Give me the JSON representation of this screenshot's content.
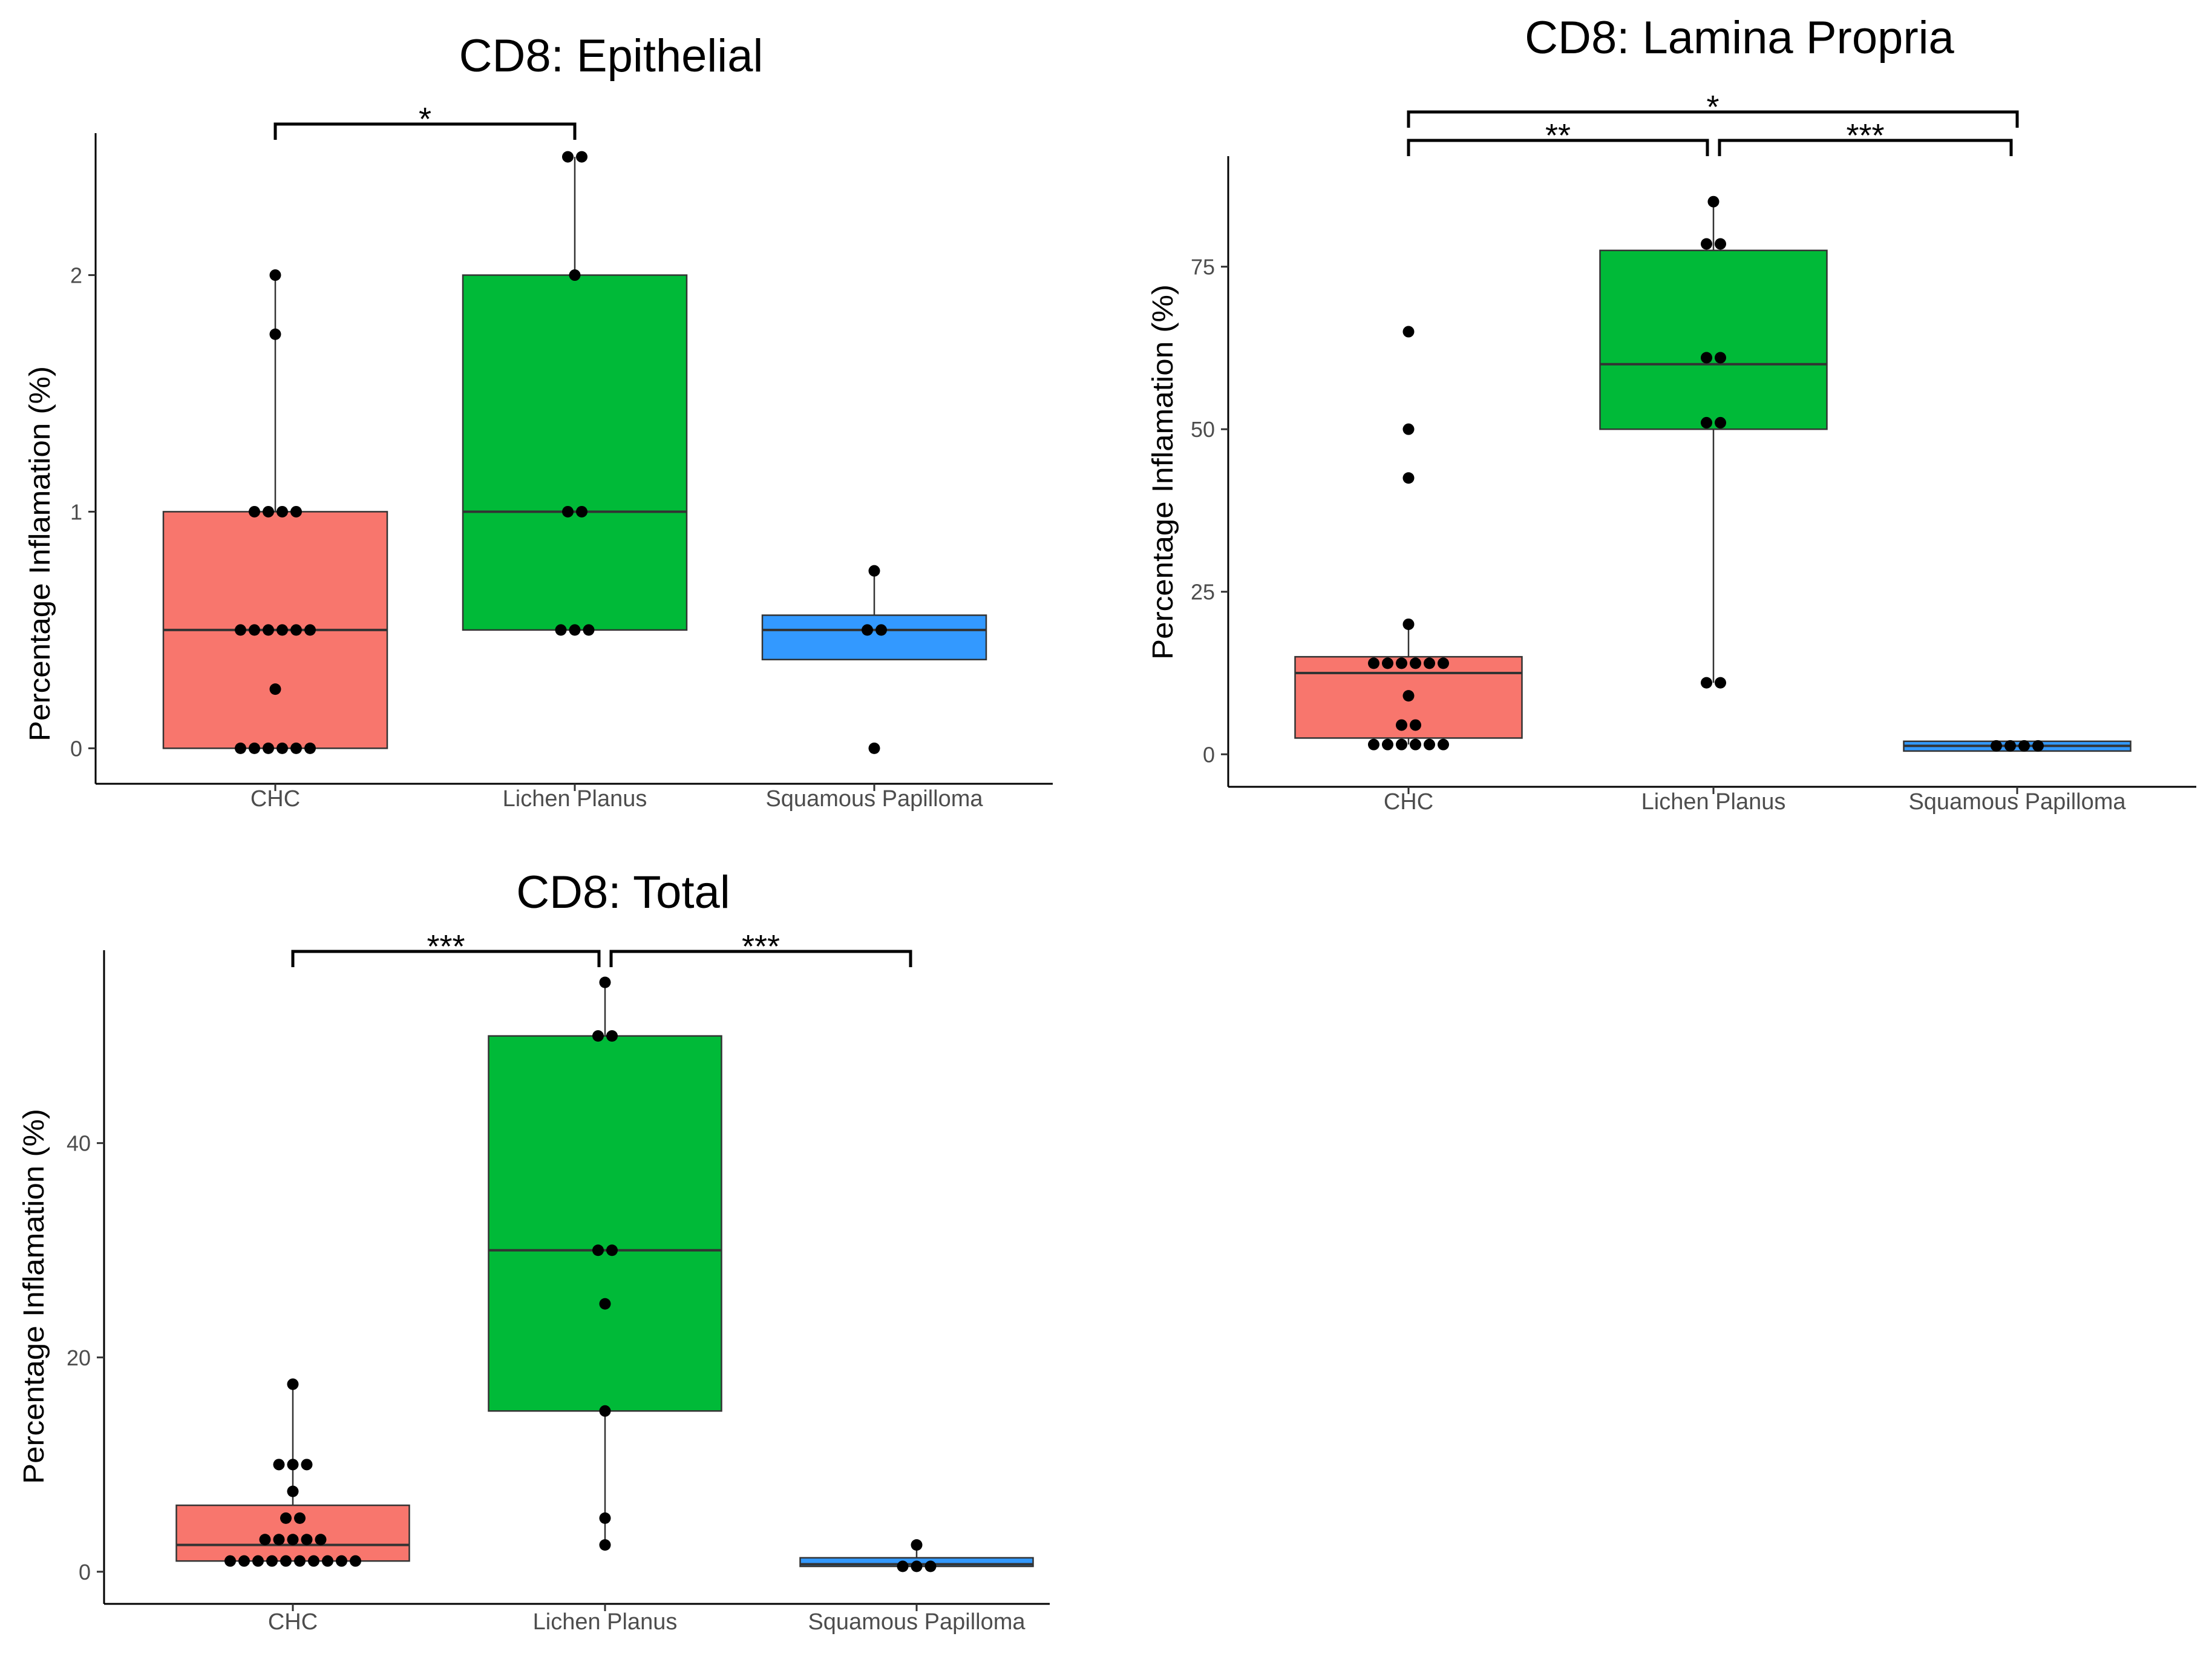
{
  "figure": {
    "panel_count": 3
  },
  "chart_data": [
    {
      "type": "box",
      "id": "epi",
      "title": "CD8: Epithelial",
      "xlabel": "",
      "ylabel": "Percentage Inflamation (%)",
      "ylim": [
        -0.15,
        2.6
      ],
      "yticks": [
        0,
        1,
        2
      ],
      "categories": [
        "CHC",
        "Lichen Planus",
        "Squamous Papilloma"
      ],
      "colors": [
        "#F8766D",
        "#00BA38",
        "#3399FF"
      ],
      "boxes": [
        {
          "q1": 0.0,
          "median": 0.5,
          "q3": 1.0,
          "whisker_low": 0.0,
          "whisker_high": 2.0
        },
        {
          "q1": 0.5,
          "median": 1.0,
          "q3": 2.0,
          "whisker_low": 0.5,
          "whisker_high": 2.5
        },
        {
          "q1": 0.375,
          "median": 0.5,
          "q3": 0.5625,
          "whisker_low": 0.375,
          "whisker_high": 0.75
        }
      ],
      "points": [
        [
          0,
          0,
          0,
          0,
          0,
          0,
          0.25,
          0.5,
          0.5,
          0.5,
          0.5,
          0.5,
          0.5,
          1,
          1,
          1,
          1,
          1.75,
          2
        ],
        [
          0.5,
          0.5,
          0.5,
          1,
          1,
          2,
          2.5,
          2.5
        ],
        [
          0,
          0.5,
          0.5,
          0.75
        ]
      ],
      "significance": [
        {
          "from": 0,
          "to": 1,
          "label": "*",
          "level": 0
        }
      ]
    },
    {
      "type": "box",
      "id": "lp",
      "title": "CD8: Lamina Propria",
      "xlabel": "",
      "ylabel": "Percentage Inflamation (%)",
      "ylim": [
        -5,
        92
      ],
      "yticks": [
        0,
        25,
        50,
        75
      ],
      "categories": [
        "CHC",
        "Lichen Planus",
        "Squamous Papilloma"
      ],
      "colors": [
        "#F8766D",
        "#00BA38",
        "#3399FF"
      ],
      "boxes": [
        {
          "q1": 2.5,
          "median": 12.5,
          "q3": 15,
          "whisker_low": 1.5,
          "whisker_high": 20
        },
        {
          "q1": 50,
          "median": 60,
          "q3": 77.5,
          "whisker_low": 11,
          "whisker_high": 85
        },
        {
          "q1": 0.5,
          "median": 1.3,
          "q3": 2.0,
          "whisker_low": 0.5,
          "whisker_high": 2.0
        }
      ],
      "points": [
        [
          1.5,
          1.5,
          1.5,
          1.5,
          1.5,
          1.5,
          4.5,
          4.5,
          9,
          14,
          14,
          14,
          14,
          14,
          14,
          20,
          42.5,
          50,
          65
        ],
        [
          11,
          11,
          51,
          51,
          61,
          61,
          78.5,
          78.5,
          85
        ],
        [
          1.3,
          1.3,
          1.3,
          1.3
        ]
      ],
      "significance": [
        {
          "from": 0,
          "to": 1,
          "label": "**",
          "level": 0
        },
        {
          "from": 1,
          "to": 2,
          "label": "***",
          "level": 0
        },
        {
          "from": 0,
          "to": 2,
          "label": "*",
          "level": 1
        }
      ]
    },
    {
      "type": "box",
      "id": "total",
      "title": "CD8: Total",
      "xlabel": "",
      "ylabel": "Percentage Inflamation (%)",
      "ylim": [
        -3,
        58
      ],
      "yticks": [
        0,
        20,
        40
      ],
      "categories": [
        "CHC",
        "Lichen Planus",
        "Squamous Papilloma"
      ],
      "colors": [
        "#F8766D",
        "#00BA38",
        "#3399FF"
      ],
      "boxes": [
        {
          "q1": 1.0,
          "median": 2.5,
          "q3": 6.2,
          "whisker_low": 1.0,
          "whisker_high": 17.5
        },
        {
          "q1": 15,
          "median": 30,
          "q3": 50,
          "whisker_low": 2.5,
          "whisker_high": 55
        },
        {
          "q1": 0.5,
          "median": 0.7,
          "q3": 1.3,
          "whisker_low": 0.5,
          "whisker_high": 2.5
        }
      ],
      "points": [
        [
          1,
          1,
          1,
          1,
          1,
          1,
          1,
          1,
          1,
          1,
          3,
          3,
          3,
          3,
          3,
          5,
          5,
          7.5,
          10,
          10,
          10,
          17.5
        ],
        [
          2.5,
          5,
          15,
          25,
          30,
          30,
          50,
          50,
          55
        ],
        [
          0.5,
          0.5,
          0.5,
          2.5
        ]
      ],
      "significance": [
        {
          "from": 0,
          "to": 1,
          "label": "***",
          "level": 0
        },
        {
          "from": 1,
          "to": 2,
          "label": "***",
          "level": 0
        }
      ]
    }
  ]
}
